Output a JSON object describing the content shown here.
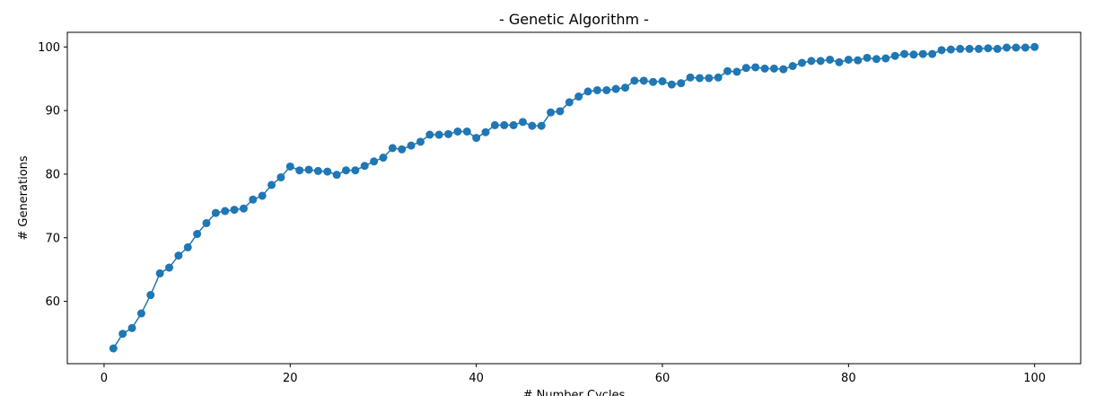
{
  "chart_data": {
    "type": "line",
    "title": "- Genetic Algorithm -",
    "xlabel": "# Number Cycles",
    "ylabel": "# Generations",
    "xlim": [
      -3.95,
      104.95
    ],
    "ylim": [
      50.2,
      102.3
    ],
    "xticks": [
      0,
      20,
      40,
      60,
      80,
      100
    ],
    "yticks": [
      60,
      70,
      80,
      90,
      100
    ],
    "grid": false,
    "markers": true,
    "color": "#1f77b4",
    "series": [
      {
        "x": [
          1,
          2,
          3,
          4,
          5,
          6,
          7,
          8,
          9,
          10,
          11,
          12,
          13,
          14,
          15,
          16,
          17,
          18,
          19,
          20,
          21,
          22,
          23,
          24,
          25,
          26,
          27,
          28,
          29,
          30,
          31,
          32,
          33,
          34,
          35,
          36,
          37,
          38,
          39,
          40,
          41,
          42,
          43,
          44,
          45,
          46,
          47,
          48,
          49,
          50,
          51,
          52,
          53,
          54,
          55,
          56,
          57,
          58,
          59,
          60,
          61,
          62,
          63,
          64,
          65,
          66,
          67,
          68,
          69,
          70,
          71,
          72,
          73,
          74,
          75,
          76,
          77,
          78,
          79,
          80,
          81,
          82,
          83,
          84,
          85,
          86,
          87,
          88,
          89,
          90,
          91,
          92,
          93,
          94,
          95,
          96,
          97,
          98,
          99,
          100
        ],
        "values": [
          52.6,
          54.9,
          55.8,
          58.1,
          61.0,
          64.4,
          65.3,
          67.2,
          68.5,
          70.6,
          72.3,
          73.9,
          74.2,
          74.4,
          74.6,
          76.0,
          76.6,
          78.3,
          79.5,
          81.2,
          80.6,
          80.7,
          80.5,
          80.4,
          79.9,
          80.6,
          80.6,
          81.3,
          82.0,
          82.6,
          84.1,
          83.9,
          84.5,
          85.1,
          86.2,
          86.2,
          86.3,
          86.7,
          86.7,
          85.7,
          86.6,
          87.7,
          87.7,
          87.7,
          88.2,
          87.6,
          87.6,
          89.7,
          89.9,
          91.3,
          92.2,
          93.0,
          93.2,
          93.2,
          93.4,
          93.6,
          94.7,
          94.7,
          94.5,
          94.6,
          94.1,
          94.3,
          95.2,
          95.1,
          95.1,
          95.2,
          96.2,
          96.1,
          96.7,
          96.8,
          96.6,
          96.6,
          96.5,
          97.0,
          97.5,
          97.8,
          97.8,
          98.0,
          97.6,
          98.0,
          97.9,
          98.3,
          98.1,
          98.2,
          98.6,
          98.9,
          98.8,
          98.9,
          98.9,
          99.5,
          99.6,
          99.7,
          99.7,
          99.7,
          99.8,
          99.7,
          99.9,
          99.9,
          99.9,
          100.0
        ]
      }
    ]
  }
}
